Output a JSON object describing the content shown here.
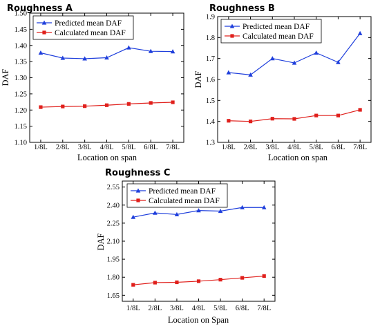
{
  "chart_data": [
    {
      "type": "line",
      "title": "Roughness A",
      "xlabel": "Location on span",
      "ylabel": "DAF",
      "categories": [
        "1/8L",
        "2/8L",
        "3/8L",
        "4/8L",
        "5/8L",
        "6/8L",
        "7/8L"
      ],
      "ylim": [
        1.1,
        1.5
      ],
      "yticks": [
        "1.10",
        "1.15",
        "1.20",
        "1.25",
        "1.30",
        "1.35",
        "1.40",
        "1.45",
        "1.50"
      ],
      "legend": "top-left",
      "series": [
        {
          "name": "Predicted mean DAF",
          "color": "#1f3fdc",
          "marker": "triangle",
          "values": [
            1.377,
            1.361,
            1.359,
            1.362,
            1.393,
            1.382,
            1.381
          ]
        },
        {
          "name": "Calculated mean DAF",
          "color": "#e0201c",
          "marker": "square",
          "values": [
            1.209,
            1.211,
            1.212,
            1.215,
            1.219,
            1.222,
            1.224
          ]
        }
      ]
    },
    {
      "type": "line",
      "title": "Roughness B",
      "xlabel": "Location on span",
      "ylabel": "DAF",
      "categories": [
        "1/8L",
        "2/8L",
        "3/8L",
        "4/8L",
        "5/8L",
        "6/8L",
        "7/8L"
      ],
      "ylim": [
        1.3,
        1.9
      ],
      "yticks": [
        "1.3",
        "1.4",
        "1.5",
        "1.6",
        "1.7",
        "1.8",
        "1.9"
      ],
      "legend": "top-left",
      "series": [
        {
          "name": "Predicted mean DAF",
          "color": "#1f3fdc",
          "marker": "triangle",
          "values": [
            1.633,
            1.622,
            1.7,
            1.679,
            1.727,
            1.682,
            1.82
          ]
        },
        {
          "name": "Calculated mean DAF",
          "color": "#e0201c",
          "marker": "square",
          "values": [
            1.403,
            1.4,
            1.413,
            1.412,
            1.428,
            1.428,
            1.455
          ]
        }
      ]
    },
    {
      "type": "line",
      "title": "Roughness C",
      "xlabel": "Location on Span",
      "ylabel": "DAF",
      "categories": [
        "1/8L",
        "2/8L",
        "3/8L",
        "4/8L",
        "5/8L",
        "6/8L",
        "7/8L"
      ],
      "ylim": [
        1.6,
        2.6
      ],
      "yticks": [
        "1.65",
        "1.80",
        "1.95",
        "2.10",
        "2.25",
        "2.40",
        "2.55"
      ],
      "legend": "top-left",
      "series": [
        {
          "name": "Predicted mean DAF",
          "color": "#1f3fdc",
          "marker": "triangle",
          "values": [
            2.3,
            2.335,
            2.322,
            2.355,
            2.35,
            2.38,
            2.38
          ]
        },
        {
          "name": "Calculated mean DAF",
          "color": "#e0201c",
          "marker": "square",
          "values": [
            1.737,
            1.755,
            1.758,
            1.767,
            1.78,
            1.795,
            1.81
          ]
        }
      ]
    }
  ]
}
